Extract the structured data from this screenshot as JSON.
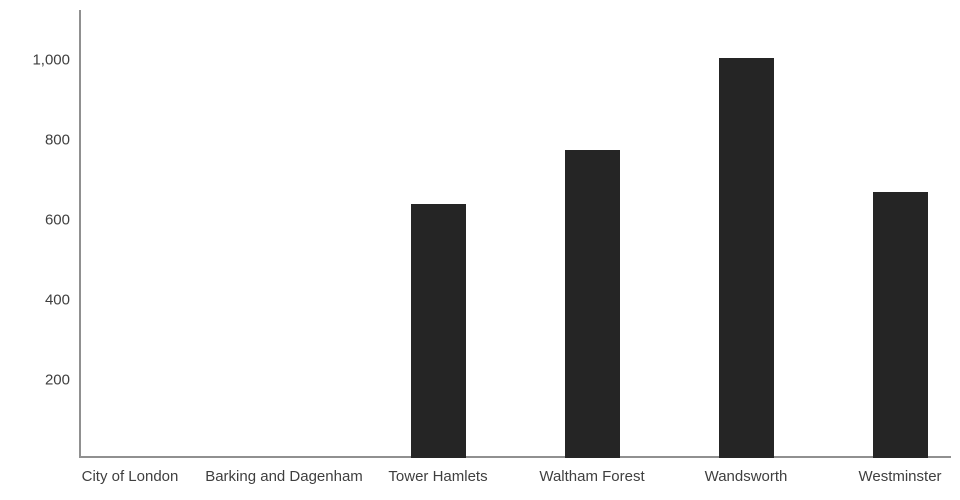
{
  "chart_data": {
    "type": "bar",
    "title": "",
    "xlabel": "",
    "ylabel": "",
    "categories": [
      "City of London",
      "Barking and Dagenham",
      "Tower Hamlets",
      "Waltham Forest",
      "Wandsworth",
      "Westminster"
    ],
    "values": [
      0,
      0,
      635,
      770,
      1000,
      665
    ],
    "yticks": [
      200,
      400,
      600,
      800,
      1000
    ],
    "ytick_labels": [
      "200",
      "400",
      "600",
      "800",
      "1,000"
    ],
    "ylim": [
      0,
      1120
    ],
    "grid": false,
    "legend": null,
    "colors": {
      "bar": "#252525",
      "axis": "#909090",
      "label_text": "#3f3f3f",
      "background": "#ffffff"
    }
  }
}
